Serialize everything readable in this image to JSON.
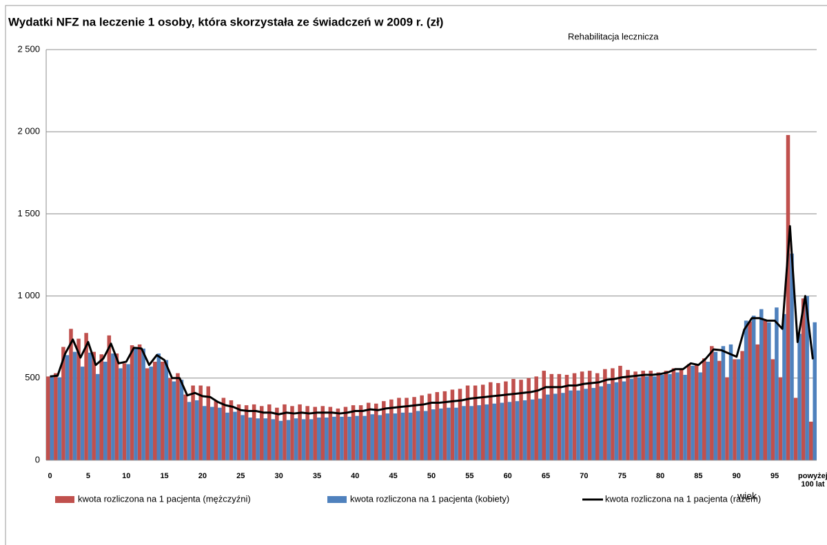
{
  "chart_data": {
    "type": "bar",
    "title": "Wydatki NFZ na leczenie 1 osoby, która skorzystała ze świadczeń w 2009 r. (zł)",
    "subtitle": "Rehabilitacja lecznicza",
    "x_label": "wiek",
    "categories": [
      "0",
      null,
      null,
      null,
      null,
      "5",
      null,
      null,
      null,
      null,
      "10",
      null,
      null,
      null,
      null,
      "15",
      null,
      null,
      null,
      null,
      "20",
      null,
      null,
      null,
      null,
      "25",
      null,
      null,
      null,
      null,
      "30",
      null,
      null,
      null,
      null,
      "35",
      null,
      null,
      null,
      null,
      "40",
      null,
      null,
      null,
      null,
      "45",
      null,
      null,
      null,
      null,
      "50",
      null,
      null,
      null,
      null,
      "55",
      null,
      null,
      null,
      null,
      "60",
      null,
      null,
      null,
      null,
      "65",
      null,
      null,
      null,
      null,
      "70",
      null,
      null,
      null,
      null,
      "75",
      null,
      null,
      null,
      null,
      "80",
      null,
      null,
      null,
      null,
      "85",
      null,
      null,
      null,
      null,
      "90",
      null,
      null,
      null,
      null,
      "95",
      null,
      null,
      null,
      null,
      "powyżej 100 lat"
    ],
    "series": [
      {
        "name": "kwota rozliczona na 1 pacjenta (mężczyźni)",
        "color": "#c0504d",
        "type": "bar",
        "values": [
          510,
          530,
          690,
          800,
          740,
          775,
          660,
          645,
          760,
          650,
          590,
          700,
          705,
          560,
          600,
          600,
          500,
          530,
          400,
          455,
          455,
          450,
          360,
          380,
          365,
          340,
          335,
          340,
          330,
          340,
          320,
          340,
          330,
          340,
          330,
          325,
          330,
          325,
          315,
          325,
          335,
          335,
          350,
          345,
          360,
          370,
          380,
          380,
          385,
          395,
          405,
          415,
          420,
          430,
          435,
          455,
          455,
          460,
          475,
          470,
          480,
          495,
          490,
          500,
          510,
          545,
          525,
          525,
          520,
          530,
          540,
          545,
          530,
          555,
          560,
          575,
          550,
          540,
          545,
          545,
          535,
          545,
          560,
          555,
          585,
          580,
          620,
          695,
          605,
          505,
          615,
          665,
          845,
          705,
          850,
          615,
          505,
          1980,
          380,
          985,
          235
        ]
      },
      {
        "name": "kwota rozliczona na 1 pacjenta (kobiety)",
        "color": "#4f81bd",
        "type": "bar",
        "values": [
          505,
          505,
          640,
          660,
          570,
          655,
          525,
          600,
          650,
          560,
          585,
          690,
          680,
          570,
          650,
          610,
          480,
          490,
          355,
          365,
          330,
          325,
          320,
          290,
          295,
          275,
          260,
          255,
          255,
          250,
          240,
          245,
          255,
          250,
          250,
          260,
          260,
          265,
          265,
          265,
          270,
          270,
          280,
          275,
          285,
          285,
          290,
          290,
          300,
          300,
          310,
          315,
          320,
          320,
          330,
          330,
          335,
          340,
          345,
          350,
          355,
          360,
          365,
          370,
          375,
          400,
          405,
          410,
          425,
          425,
          435,
          440,
          450,
          465,
          475,
          480,
          495,
          505,
          510,
          510,
          520,
          525,
          535,
          520,
          575,
          535,
          600,
          660,
          695,
          705,
          615,
          850,
          880,
          920,
          840,
          930,
          890,
          1258,
          770,
          1000,
          840
        ]
      },
      {
        "name": "kwota rozliczona na 1 pacjenta (razem)",
        "color": "#000000",
        "type": "line",
        "values": [
          510,
          515,
          650,
          735,
          625,
          720,
          580,
          620,
          710,
          590,
          600,
          685,
          680,
          580,
          640,
          610,
          500,
          500,
          395,
          410,
          390,
          385,
          355,
          335,
          325,
          305,
          300,
          300,
          290,
          290,
          280,
          290,
          285,
          290,
          285,
          290,
          290,
          290,
          285,
          290,
          300,
          300,
          310,
          305,
          315,
          320,
          325,
          330,
          335,
          340,
          350,
          350,
          355,
          360,
          365,
          375,
          380,
          385,
          390,
          395,
          400,
          405,
          410,
          415,
          425,
          445,
          445,
          445,
          455,
          455,
          465,
          470,
          475,
          490,
          495,
          505,
          510,
          515,
          520,
          520,
          525,
          535,
          555,
          555,
          590,
          580,
          620,
          675,
          670,
          650,
          630,
          795,
          865,
          865,
          850,
          850,
          800,
          1425,
          720,
          1000,
          615
        ]
      }
    ],
    "ylim": [
      0,
      2500
    ],
    "yticks": [
      0,
      500,
      {
        "value": 1000,
        "label": "1 000"
      },
      {
        "value": 1500,
        "label": "1 500"
      },
      {
        "value": 2000,
        "label": "2 000"
      },
      {
        "value": 2500,
        "label": "2 500"
      }
    ],
    "grid": true,
    "legend": "bottom"
  }
}
